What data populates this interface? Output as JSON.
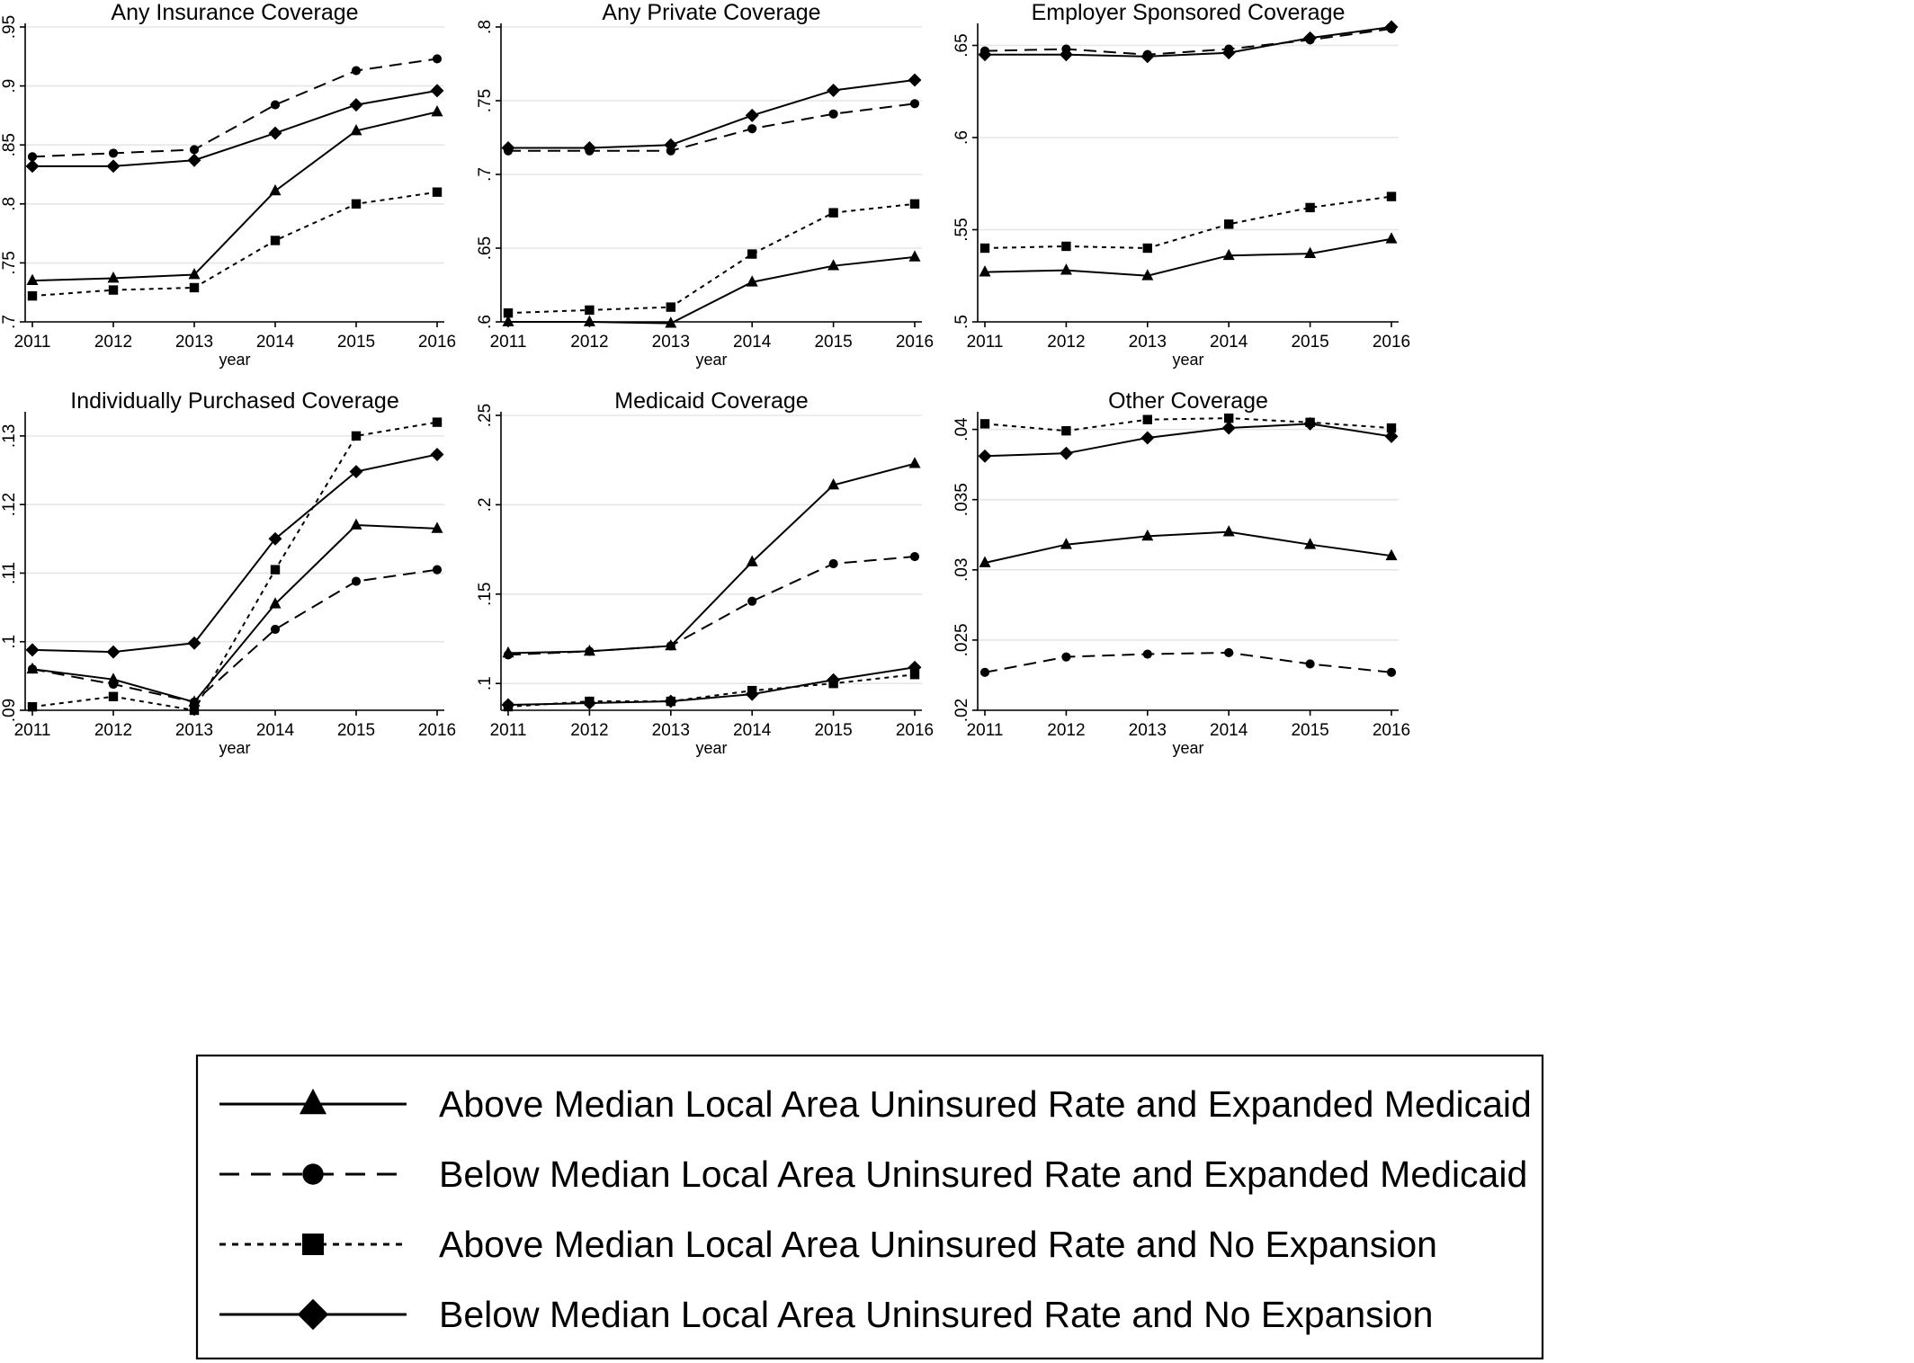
{
  "colors": {
    "line": "#000000",
    "grid": "#e6e6e6",
    "background": "#ffffff"
  },
  "chart_data": [
    {
      "type": "line",
      "title": "Any Insurance Coverage",
      "xlabel": "year",
      "x": [
        2011,
        2012,
        2013,
        2014,
        2015,
        2016
      ],
      "ylim": [
        0.7,
        0.95
      ],
      "yticks": [
        0.7,
        0.75,
        0.8,
        0.85,
        0.9,
        0.95
      ],
      "ytick_labels": [
        ".7",
        ".75",
        ".8",
        ".85",
        ".9",
        ".95"
      ],
      "grid": true,
      "series": [
        {
          "key": "above_expanded",
          "values": [
            0.735,
            0.737,
            0.74,
            0.811,
            0.862,
            0.878
          ]
        },
        {
          "key": "below_expanded",
          "values": [
            0.84,
            0.843,
            0.846,
            0.884,
            0.913,
            0.923
          ]
        },
        {
          "key": "above_noexp",
          "values": [
            0.722,
            0.727,
            0.729,
            0.769,
            0.8,
            0.81
          ]
        },
        {
          "key": "below_noexp",
          "values": [
            0.832,
            0.832,
            0.837,
            0.86,
            0.884,
            0.896
          ]
        }
      ]
    },
    {
      "type": "line",
      "title": "Any Private Coverage",
      "xlabel": "year",
      "x": [
        2011,
        2012,
        2013,
        2014,
        2015,
        2016
      ],
      "ylim": [
        0.6,
        0.8
      ],
      "yticks": [
        0.6,
        0.65,
        0.7,
        0.75,
        0.8
      ],
      "ytick_labels": [
        ".6",
        ".65",
        ".7",
        ".75",
        ".8"
      ],
      "grid": true,
      "series": [
        {
          "key": "above_expanded",
          "values": [
            0.6,
            0.6,
            0.599,
            0.627,
            0.638,
            0.644
          ]
        },
        {
          "key": "below_expanded",
          "values": [
            0.716,
            0.716,
            0.716,
            0.731,
            0.741,
            0.748
          ]
        },
        {
          "key": "above_noexp",
          "values": [
            0.606,
            0.608,
            0.61,
            0.646,
            0.674,
            0.68
          ]
        },
        {
          "key": "below_noexp",
          "values": [
            0.718,
            0.718,
            0.72,
            0.74,
            0.757,
            0.764
          ]
        }
      ]
    },
    {
      "type": "line",
      "title": "Employer Sponsored Coverage",
      "xlabel": "year",
      "x": [
        2011,
        2012,
        2013,
        2014,
        2015,
        2016
      ],
      "ylim": [
        0.5,
        0.66
      ],
      "yticks": [
        0.5,
        0.55,
        0.6,
        0.65
      ],
      "ytick_labels": [
        ".5",
        ".55",
        ".6",
        ".65"
      ],
      "grid": true,
      "series": [
        {
          "key": "above_expanded",
          "values": [
            0.527,
            0.528,
            0.525,
            0.536,
            0.537,
            0.545
          ]
        },
        {
          "key": "below_expanded",
          "values": [
            0.647,
            0.648,
            0.645,
            0.648,
            0.653,
            0.659
          ]
        },
        {
          "key": "above_noexp",
          "values": [
            0.54,
            0.541,
            0.54,
            0.553,
            0.562,
            0.568
          ]
        },
        {
          "key": "below_noexp",
          "values": [
            0.645,
            0.645,
            0.644,
            0.646,
            0.654,
            0.66
          ]
        }
      ]
    },
    {
      "type": "line",
      "title": "Individually Purchased Coverage",
      "xlabel": "year",
      "x": [
        2011,
        2012,
        2013,
        2014,
        2015,
        2016
      ],
      "ylim": [
        0.09,
        0.133
      ],
      "yticks": [
        0.09,
        0.1,
        0.11,
        0.12,
        0.13
      ],
      "ytick_labels": [
        ".09",
        ".1",
        ".11",
        ".12",
        ".13"
      ],
      "grid": true,
      "series": [
        {
          "key": "above_expanded",
          "values": [
            0.096,
            0.0945,
            0.0912,
            0.1055,
            0.117,
            0.1165
          ]
        },
        {
          "key": "below_expanded",
          "values": [
            0.096,
            0.0938,
            0.0912,
            0.1018,
            0.1088,
            0.1105
          ]
        },
        {
          "key": "above_noexp",
          "values": [
            0.0905,
            0.092,
            0.09,
            0.1105,
            0.13,
            0.132
          ]
        },
        {
          "key": "below_noexp",
          "values": [
            0.0988,
            0.0985,
            0.0998,
            0.115,
            0.1248,
            0.1273
          ]
        }
      ]
    },
    {
      "type": "line",
      "title": "Medicaid Coverage",
      "xlabel": "year",
      "x": [
        2011,
        2012,
        2013,
        2014,
        2015,
        2016
      ],
      "ylim": [
        0.085,
        0.25
      ],
      "yticks": [
        0.1,
        0.15,
        0.2,
        0.25
      ],
      "ytick_labels": [
        ".1",
        ".15",
        ".2",
        ".25"
      ],
      "grid": true,
      "series": [
        {
          "key": "above_expanded",
          "values": [
            0.117,
            0.118,
            0.121,
            0.168,
            0.211,
            0.223
          ]
        },
        {
          "key": "below_expanded",
          "values": [
            0.116,
            0.118,
            0.121,
            0.146,
            0.167,
            0.171
          ]
        },
        {
          "key": "above_noexp",
          "values": [
            0.087,
            0.09,
            0.09,
            0.096,
            0.1,
            0.105
          ]
        },
        {
          "key": "below_noexp",
          "values": [
            0.088,
            0.089,
            0.09,
            0.094,
            0.102,
            0.109
          ]
        }
      ]
    },
    {
      "type": "line",
      "title": "Other Coverage",
      "xlabel": "year",
      "x": [
        2011,
        2012,
        2013,
        2014,
        2015,
        2016
      ],
      "ylim": [
        0.02,
        0.041
      ],
      "yticks": [
        0.02,
        0.025,
        0.03,
        0.035,
        0.04
      ],
      "ytick_labels": [
        ".02",
        ".025",
        ".03",
        ".035",
        ".04"
      ],
      "grid": true,
      "series": [
        {
          "key": "above_expanded",
          "values": [
            0.0305,
            0.0318,
            0.0324,
            0.0327,
            0.0318,
            0.031
          ]
        },
        {
          "key": "below_expanded",
          "values": [
            0.0227,
            0.0238,
            0.024,
            0.0241,
            0.0233,
            0.0227
          ]
        },
        {
          "key": "above_noexp",
          "values": [
            0.0404,
            0.0399,
            0.0407,
            0.0408,
            0.0405,
            0.0401
          ]
        },
        {
          "key": "below_noexp",
          "values": [
            0.0381,
            0.0383,
            0.0394,
            0.0401,
            0.0404,
            0.0395
          ]
        }
      ]
    }
  ],
  "legend": {
    "placement": "bottom-center",
    "entries": [
      {
        "key": "above_expanded",
        "label": "Above Median Local Area Uninsured Rate and Expanded Medicaid"
      },
      {
        "key": "below_expanded",
        "label": "Below Median Local Area Uninsured Rate and Expanded Medicaid"
      },
      {
        "key": "above_noexp",
        "label": "Above Median Local Area Uninsured Rate and No Expansion"
      },
      {
        "key": "below_noexp",
        "label": "Below Median Local Area Uninsured Rate and No Expansion"
      }
    ]
  },
  "series_styles": {
    "above_expanded": {
      "marker": "triangle",
      "dash": "solid"
    },
    "below_expanded": {
      "marker": "circle",
      "dash": "long-dash"
    },
    "above_noexp": {
      "marker": "square",
      "dash": "short-dash"
    },
    "below_noexp": {
      "marker": "diamond",
      "dash": "solid"
    }
  }
}
